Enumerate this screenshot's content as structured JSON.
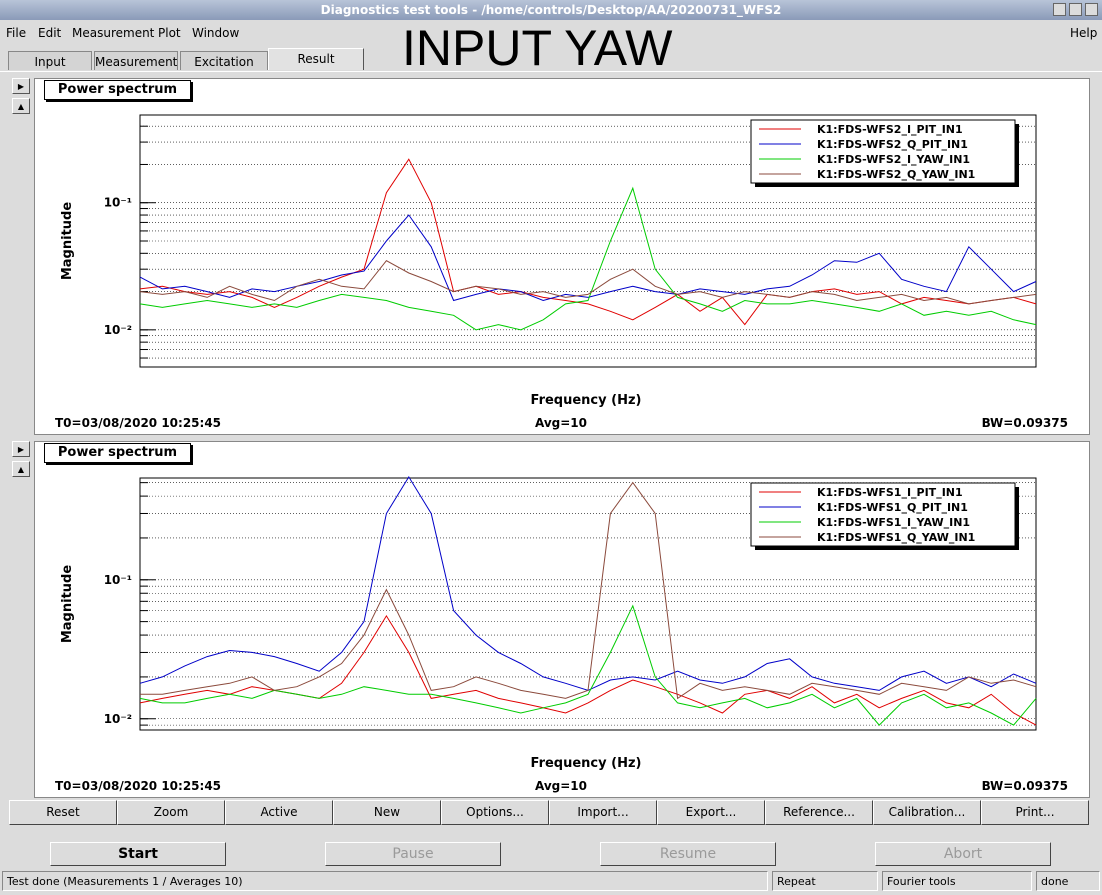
{
  "window": {
    "title": "Diagnostics test tools - /home/controls/Desktop/AA/20200731_WFS2"
  },
  "menu": {
    "items": [
      "File",
      "Edit",
      "Measurement",
      "Plot",
      "Window"
    ],
    "help": "Help"
  },
  "tabs": [
    "Input",
    "Measurement",
    "Excitation",
    "Result"
  ],
  "overlay_text": "INPUT YAW",
  "chart_data": [
    {
      "type": "line",
      "panel_title": "Power spectrum",
      "ylabel": "Magnitude",
      "xlabel": "Frequency (Hz)",
      "log_y": true,
      "grid": true,
      "ylim": [
        0.0051,
        0.49
      ],
      "yticks": [
        {
          "value": 0.01,
          "label": "10⁻²"
        },
        {
          "value": 0.1,
          "label": "10⁻¹"
        }
      ],
      "annotations": {
        "t0": "T0=03/08/2020 10:25:45",
        "avg": "Avg=10",
        "bw": "BW=0.09375"
      },
      "series": [
        {
          "name": "K1:FDS-WFS2_I_PIT_IN1",
          "color": "#e00000",
          "values": [
            0.021,
            0.022,
            0.02,
            0.019,
            0.02,
            0.018,
            0.015,
            0.018,
            0.022,
            0.026,
            0.03,
            0.12,
            0.22,
            0.1,
            0.02,
            0.022,
            0.019,
            0.02,
            0.018,
            0.017,
            0.016,
            0.014,
            0.012,
            0.015,
            0.019,
            0.014,
            0.018,
            0.011,
            0.019,
            0.018,
            0.02,
            0.021,
            0.019,
            0.02,
            0.016,
            0.018,
            0.017,
            0.016,
            0.017,
            0.018,
            0.016
          ]
        },
        {
          "name": "K1:FDS-WFS2_Q_PIT_IN1",
          "color": "#0000c8",
          "values": [
            0.026,
            0.021,
            0.022,
            0.02,
            0.018,
            0.021,
            0.02,
            0.022,
            0.024,
            0.027,
            0.029,
            0.05,
            0.08,
            0.045,
            0.017,
            0.019,
            0.021,
            0.02,
            0.017,
            0.019,
            0.018,
            0.02,
            0.022,
            0.02,
            0.019,
            0.021,
            0.02,
            0.019,
            0.021,
            0.022,
            0.027,
            0.035,
            0.034,
            0.04,
            0.025,
            0.022,
            0.02,
            0.045,
            0.03,
            0.02,
            0.024
          ]
        },
        {
          "name": "K1:FDS-WFS2_I_YAW_IN1",
          "color": "#00cc00",
          "values": [
            0.016,
            0.015,
            0.016,
            0.017,
            0.016,
            0.015,
            0.016,
            0.015,
            0.017,
            0.019,
            0.018,
            0.017,
            0.015,
            0.014,
            0.013,
            0.01,
            0.011,
            0.01,
            0.012,
            0.016,
            0.017,
            0.05,
            0.13,
            0.03,
            0.018,
            0.016,
            0.014,
            0.017,
            0.016,
            0.016,
            0.017,
            0.016,
            0.015,
            0.014,
            0.016,
            0.013,
            0.014,
            0.013,
            0.014,
            0.012,
            0.011
          ]
        },
        {
          "name": "K1:FDS-WFS2_Q_YAW_IN1",
          "color": "#8b4a3c",
          "values": [
            0.02,
            0.019,
            0.02,
            0.018,
            0.022,
            0.019,
            0.017,
            0.022,
            0.025,
            0.022,
            0.021,
            0.035,
            0.028,
            0.024,
            0.02,
            0.022,
            0.021,
            0.019,
            0.02,
            0.018,
            0.019,
            0.025,
            0.03,
            0.022,
            0.019,
            0.02,
            0.018,
            0.02,
            0.019,
            0.018,
            0.02,
            0.019,
            0.017,
            0.018,
            0.019,
            0.017,
            0.018,
            0.016,
            0.017,
            0.018,
            0.019
          ]
        }
      ]
    },
    {
      "type": "line",
      "panel_title": "Power spectrum",
      "ylabel": "Magnitude",
      "xlabel": "Frequency (Hz)",
      "log_y": true,
      "grid": true,
      "ylim": [
        0.0083,
        0.54
      ],
      "yticks": [
        {
          "value": 0.01,
          "label": "10⁻²"
        },
        {
          "value": 0.1,
          "label": "10⁻¹"
        }
      ],
      "annotations": {
        "t0": "T0=03/08/2020 10:25:45",
        "avg": "Avg=10",
        "bw": "BW=0.09375"
      },
      "series": [
        {
          "name": "K1:FDS-WFS1_I_PIT_IN1",
          "color": "#e00000",
          "values": [
            0.013,
            0.014,
            0.015,
            0.016,
            0.015,
            0.017,
            0.016,
            0.015,
            0.014,
            0.018,
            0.03,
            0.055,
            0.03,
            0.014,
            0.015,
            0.016,
            0.014,
            0.013,
            0.012,
            0.011,
            0.013,
            0.016,
            0.019,
            0.017,
            0.015,
            0.013,
            0.011,
            0.015,
            0.016,
            0.014,
            0.017,
            0.013,
            0.015,
            0.012,
            0.014,
            0.016,
            0.013,
            0.012,
            0.015,
            0.011,
            0.009
          ]
        },
        {
          "name": "K1:FDS-WFS1_Q_PIT_IN1",
          "color": "#0000c8",
          "values": [
            0.018,
            0.02,
            0.024,
            0.028,
            0.031,
            0.03,
            0.028,
            0.025,
            0.022,
            0.03,
            0.05,
            0.3,
            0.55,
            0.3,
            0.06,
            0.04,
            0.03,
            0.025,
            0.02,
            0.018,
            0.016,
            0.019,
            0.02,
            0.019,
            0.022,
            0.019,
            0.018,
            0.02,
            0.025,
            0.027,
            0.02,
            0.018,
            0.017,
            0.016,
            0.02,
            0.022,
            0.018,
            0.02,
            0.017,
            0.021,
            0.018
          ]
        },
        {
          "name": "K1:FDS-WFS1_I_YAW_IN1",
          "color": "#00cc00",
          "values": [
            0.014,
            0.013,
            0.013,
            0.014,
            0.015,
            0.014,
            0.016,
            0.015,
            0.014,
            0.015,
            0.017,
            0.016,
            0.015,
            0.015,
            0.014,
            0.013,
            0.012,
            0.011,
            0.012,
            0.013,
            0.015,
            0.03,
            0.065,
            0.02,
            0.013,
            0.012,
            0.013,
            0.014,
            0.012,
            0.013,
            0.015,
            0.012,
            0.014,
            0.009,
            0.013,
            0.015,
            0.012,
            0.013,
            0.011,
            0.009,
            0.014
          ]
        },
        {
          "name": "K1:FDS-WFS1_Q_YAW_IN1",
          "color": "#8b4a3c",
          "values": [
            0.015,
            0.015,
            0.016,
            0.017,
            0.018,
            0.02,
            0.016,
            0.017,
            0.02,
            0.025,
            0.04,
            0.085,
            0.04,
            0.016,
            0.017,
            0.02,
            0.018,
            0.016,
            0.015,
            0.014,
            0.016,
            0.3,
            0.5,
            0.3,
            0.014,
            0.018,
            0.016,
            0.017,
            0.016,
            0.015,
            0.018,
            0.017,
            0.016,
            0.015,
            0.018,
            0.017,
            0.016,
            0.02,
            0.018,
            0.019,
            0.017
          ]
        }
      ]
    }
  ],
  "buttons": [
    "Reset",
    "Zoom",
    "Active",
    "New",
    "Options...",
    "Import...",
    "Export...",
    "Reference...",
    "Calibration...",
    "Print..."
  ],
  "controls": [
    "Start",
    "Pause",
    "Resume",
    "Abort"
  ],
  "status": {
    "message": "Test done (Measurements 1 / Averages 10)",
    "mode": "Repeat",
    "tool": "Fourier tools",
    "state": "done"
  }
}
